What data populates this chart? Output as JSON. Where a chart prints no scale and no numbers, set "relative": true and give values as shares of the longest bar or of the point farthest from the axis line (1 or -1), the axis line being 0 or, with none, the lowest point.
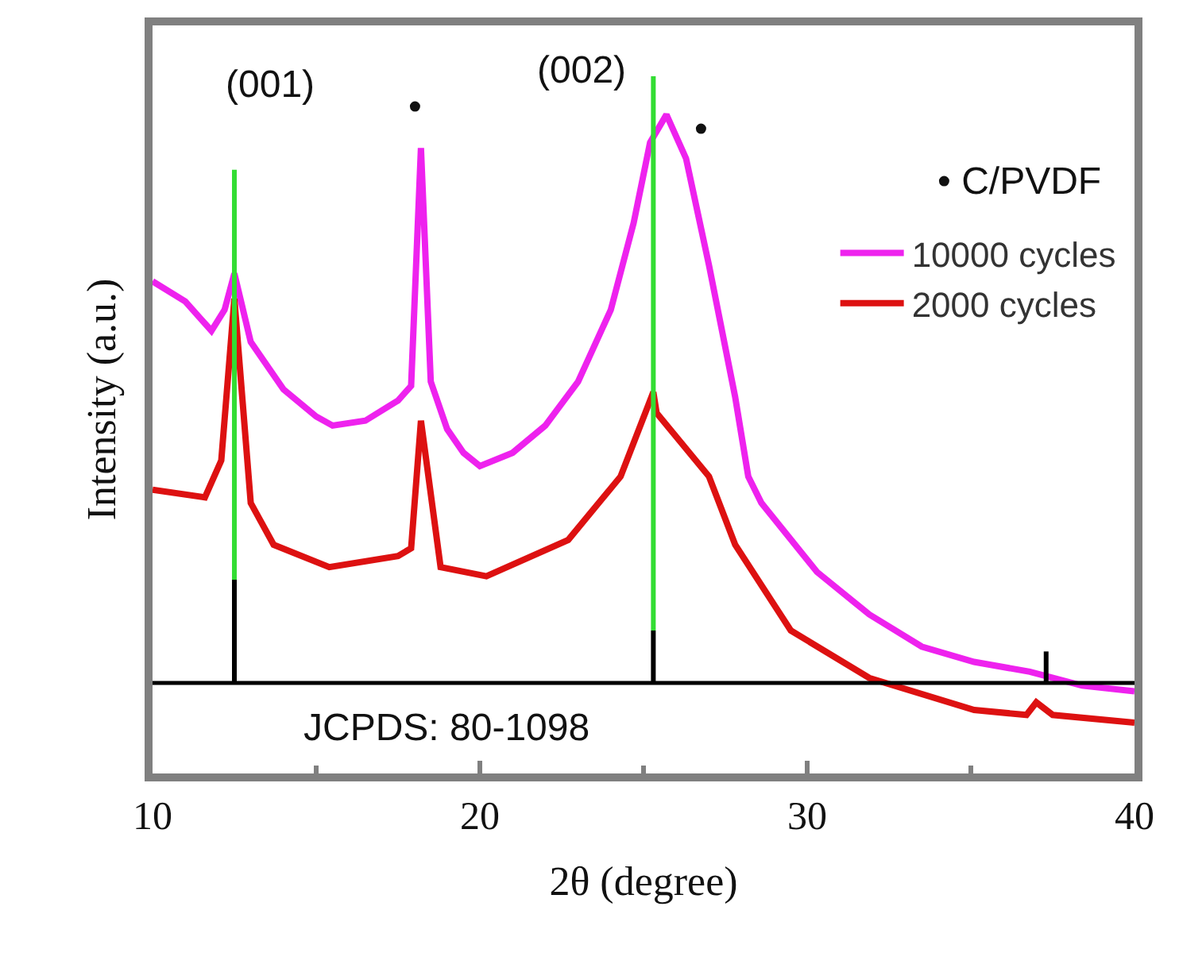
{
  "chart_data": {
    "type": "line",
    "relative": true,
    "xlabel": "2θ (degree)",
    "ylabel": "Intensity (a.u.)",
    "xlim": [
      10,
      40
    ],
    "xticks": [
      10,
      20,
      30,
      40
    ],
    "legend": "right",
    "grid": false,
    "series": [
      {
        "name": "10000 cycles",
        "color": "#ee22ee",
        "x": [
          10,
          11,
          11.8,
          12.2,
          12.5,
          13,
          14,
          15,
          15.5,
          16.5,
          17.5,
          17.9,
          18.2,
          18.5,
          19,
          19.5,
          20,
          21,
          22,
          23,
          24,
          24.7,
          25.2,
          25.7,
          26.3,
          27,
          27.8,
          28.2,
          28.6,
          30.3,
          31.9,
          33.5,
          35.1,
          36.8,
          38.4,
          40
        ],
        "values": [
          0.706,
          0.677,
          0.635,
          0.665,
          0.717,
          0.619,
          0.551,
          0.512,
          0.499,
          0.506,
          0.535,
          0.556,
          0.897,
          0.562,
          0.494,
          0.46,
          0.441,
          0.46,
          0.499,
          0.562,
          0.665,
          0.79,
          0.905,
          0.945,
          0.882,
          0.729,
          0.54,
          0.426,
          0.388,
          0.289,
          0.228,
          0.182,
          0.16,
          0.146,
          0.126,
          0.118
        ]
      },
      {
        "name": "2000 cycles",
        "color": "#dd1111",
        "x": [
          10,
          11.6,
          12.1,
          12.5,
          13,
          13.7,
          15.4,
          17.5,
          17.9,
          18.2,
          18.8,
          20.2,
          22.7,
          24.3,
          25.3,
          25.4,
          27,
          27.8,
          29.5,
          31.9,
          35.1,
          36.7,
          37,
          37.5,
          40
        ],
        "values": [
          0.407,
          0.396,
          0.449,
          0.681,
          0.388,
          0.328,
          0.296,
          0.312,
          0.323,
          0.506,
          0.296,
          0.283,
          0.335,
          0.426,
          0.547,
          0.517,
          0.426,
          0.328,
          0.205,
          0.137,
          0.091,
          0.084,
          0.102,
          0.084,
          0.073
        ]
      },
      {
        "color": "#000000",
        "x": [
          12.5,
          12.5,
          null,
          25.3,
          25.3,
          null,
          37.3,
          37.3
        ],
        "values": [
          0.13,
          0.278,
          null,
          0.13,
          0.205,
          null,
          0.13,
          0.175
        ]
      },
      {
        "color": "#33dd33",
        "x": [
          12.5,
          12.5,
          null,
          25.3,
          25.3
        ],
        "values": [
          0.278,
          0.866,
          null,
          0.205,
          1.0
        ]
      }
    ],
    "ref_lines": [
      {
        "axis": "y",
        "value": 0.13,
        "color": "#000000"
      }
    ],
    "annotations": [
      "(001)",
      "•",
      "(002)",
      "•",
      "• C/PVDF",
      "JCPDS: 80-1098"
    ]
  }
}
